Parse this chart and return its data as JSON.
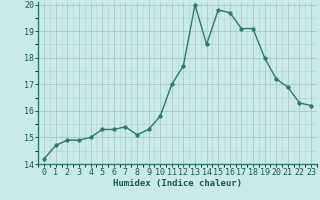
{
  "x": [
    0,
    1,
    2,
    3,
    4,
    5,
    6,
    7,
    8,
    9,
    10,
    11,
    12,
    13,
    14,
    15,
    16,
    17,
    18,
    19,
    20,
    21,
    22,
    23
  ],
  "y": [
    14.2,
    14.7,
    14.9,
    14.9,
    15.0,
    15.3,
    15.3,
    15.4,
    15.1,
    15.3,
    15.8,
    17.0,
    17.7,
    20.0,
    18.5,
    19.8,
    19.7,
    19.1,
    19.1,
    18.0,
    17.2,
    16.9,
    16.3,
    16.2
  ],
  "line_color": "#2d7a6a",
  "marker_color": "#2d7a6a",
  "bg_color": "#c8eae8",
  "grid_color_major": "#aac8c4",
  "xlabel": "Humidex (Indice chaleur)",
  "xlim": [
    -0.5,
    23.5
  ],
  "ylim": [
    14,
    20.1
  ],
  "yticks": [
    14,
    15,
    16,
    17,
    18,
    19,
    20
  ],
  "xticks": [
    0,
    1,
    2,
    3,
    4,
    5,
    6,
    7,
    8,
    9,
    10,
    11,
    12,
    13,
    14,
    15,
    16,
    17,
    18,
    19,
    20,
    21,
    22,
    23
  ],
  "xlabel_fontsize": 6.5,
  "tick_fontsize": 6,
  "line_width": 1.0,
  "marker_size": 2.5
}
